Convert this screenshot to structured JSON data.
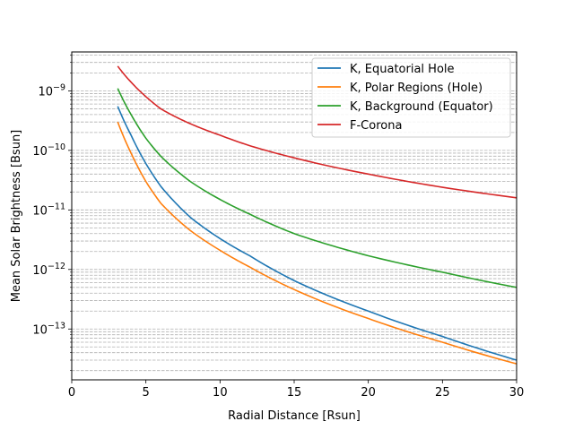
{
  "chart_data": {
    "type": "line",
    "title": "",
    "xlabel": "Radial Distance [Rsun]",
    "ylabel": "Mean Solar Brightness [Bsun]",
    "xlim": [
      0,
      30
    ],
    "ylim": [
      1.4e-14,
      4.5e-09
    ],
    "yscale": "log",
    "grid": "y-axis major and minor, dashed gray",
    "legend_position": "top-right",
    "x_ticks": [
      "0",
      "5",
      "10",
      "15",
      "20",
      "25",
      "30"
    ],
    "y_ticks": [
      "10^-13",
      "10^-12",
      "10^-11",
      "10^-10",
      "10^-9"
    ],
    "x": [
      3.1,
      4,
      5,
      6,
      8,
      10,
      12,
      15,
      20,
      25,
      30
    ],
    "series": [
      {
        "name": "K, Equatorial Hole",
        "color": "#1f77b4",
        "values": [
          5.5e-10,
          1.8e-10,
          6e-11,
          2.5e-11,
          7.5e-12,
          3.3e-12,
          1.7e-12,
          6.5e-13,
          2e-13,
          7.5e-14,
          3e-14
        ]
      },
      {
        "name": "K, Polar Regions (Hole)",
        "color": "#ff7f0e",
        "values": [
          3e-10,
          9e-11,
          3e-11,
          1.3e-11,
          4.5e-12,
          2.1e-12,
          1.1e-12,
          4.6e-13,
          1.5e-13,
          6e-14,
          2.6e-14
        ]
      },
      {
        "name": "K, Background (Equator)",
        "color": "#2ca02c",
        "values": [
          1.1e-09,
          4e-10,
          1.6e-10,
          8e-11,
          3e-11,
          1.5e-11,
          8.5e-12,
          4e-12,
          1.7e-12,
          9e-13,
          5e-13
        ]
      },
      {
        "name": "F-Corona",
        "color": "#d62728",
        "values": [
          2.6e-09,
          1.4e-09,
          8e-10,
          5e-10,
          2.8e-10,
          1.8e-10,
          1.2e-10,
          7.5e-11,
          4e-11,
          2.4e-11,
          1.6e-11
        ]
      }
    ]
  }
}
